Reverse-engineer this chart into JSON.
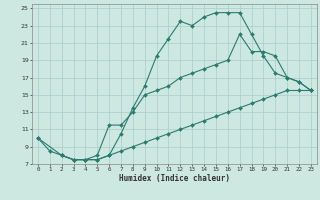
{
  "xlabel": "Humidex (Indice chaleur)",
  "bg_color": "#cce8e0",
  "line_color": "#2d7a6e",
  "grid_color": "#aacccc",
  "xlim": [
    -0.5,
    23.5
  ],
  "ylim": [
    7,
    25.5
  ],
  "xticks": [
    0,
    1,
    2,
    3,
    4,
    5,
    6,
    7,
    8,
    9,
    10,
    11,
    12,
    13,
    14,
    15,
    16,
    17,
    18,
    19,
    20,
    21,
    22,
    23
  ],
  "yticks": [
    7,
    9,
    11,
    13,
    15,
    17,
    19,
    21,
    23,
    25
  ],
  "curve1_x": [
    0,
    1,
    2,
    3,
    4,
    5,
    6,
    7,
    8,
    9,
    10,
    11,
    12,
    13,
    14,
    15,
    16,
    17,
    18,
    19,
    20,
    21,
    22,
    23
  ],
  "curve1_y": [
    10,
    8.5,
    8,
    7.5,
    7.5,
    7.5,
    8,
    10.5,
    13.5,
    16,
    19.5,
    21.5,
    23.5,
    23.0,
    24.0,
    24.5,
    24.5,
    24.5,
    22.0,
    19.5,
    17.5,
    17.0,
    16.5,
    15.5
  ],
  "curve2_x": [
    0,
    2,
    3,
    4,
    5,
    6,
    7,
    8,
    9,
    10,
    11,
    12,
    13,
    14,
    15,
    16,
    17,
    18,
    19,
    20,
    21,
    22,
    23
  ],
  "curve2_y": [
    10,
    8.0,
    7.5,
    7.5,
    8.0,
    11.5,
    11.5,
    13.0,
    15.0,
    15.5,
    16.0,
    17.0,
    17.5,
    18.0,
    18.5,
    19.0,
    22.0,
    20.0,
    20.0,
    19.5,
    17.0,
    16.5,
    15.5
  ],
  "curve3_x": [
    2,
    3,
    4,
    5,
    6,
    7,
    8,
    9,
    10,
    11,
    12,
    13,
    14,
    15,
    16,
    17,
    18,
    19,
    20,
    21,
    22,
    23
  ],
  "curve3_y": [
    8.0,
    7.5,
    7.5,
    7.5,
    8.0,
    8.5,
    9.0,
    9.5,
    10.0,
    10.5,
    11.0,
    11.5,
    12.0,
    12.5,
    13.0,
    13.5,
    14.0,
    14.5,
    15.0,
    15.5,
    15.5,
    15.5
  ]
}
